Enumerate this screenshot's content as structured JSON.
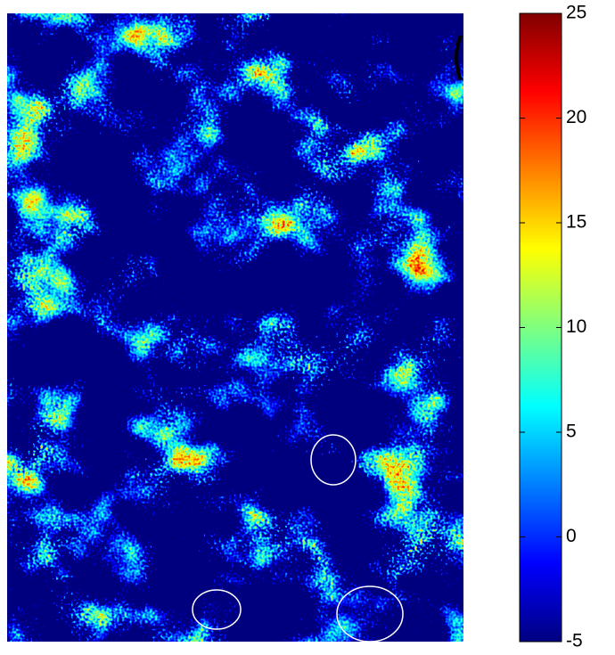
{
  "chart_data": {
    "type": "heatmap",
    "colorbar": {
      "lim": [
        -5,
        25
      ],
      "ticks": [
        -5,
        0,
        5,
        10,
        15,
        20,
        25
      ],
      "colormap": "jet"
    }
  }
}
